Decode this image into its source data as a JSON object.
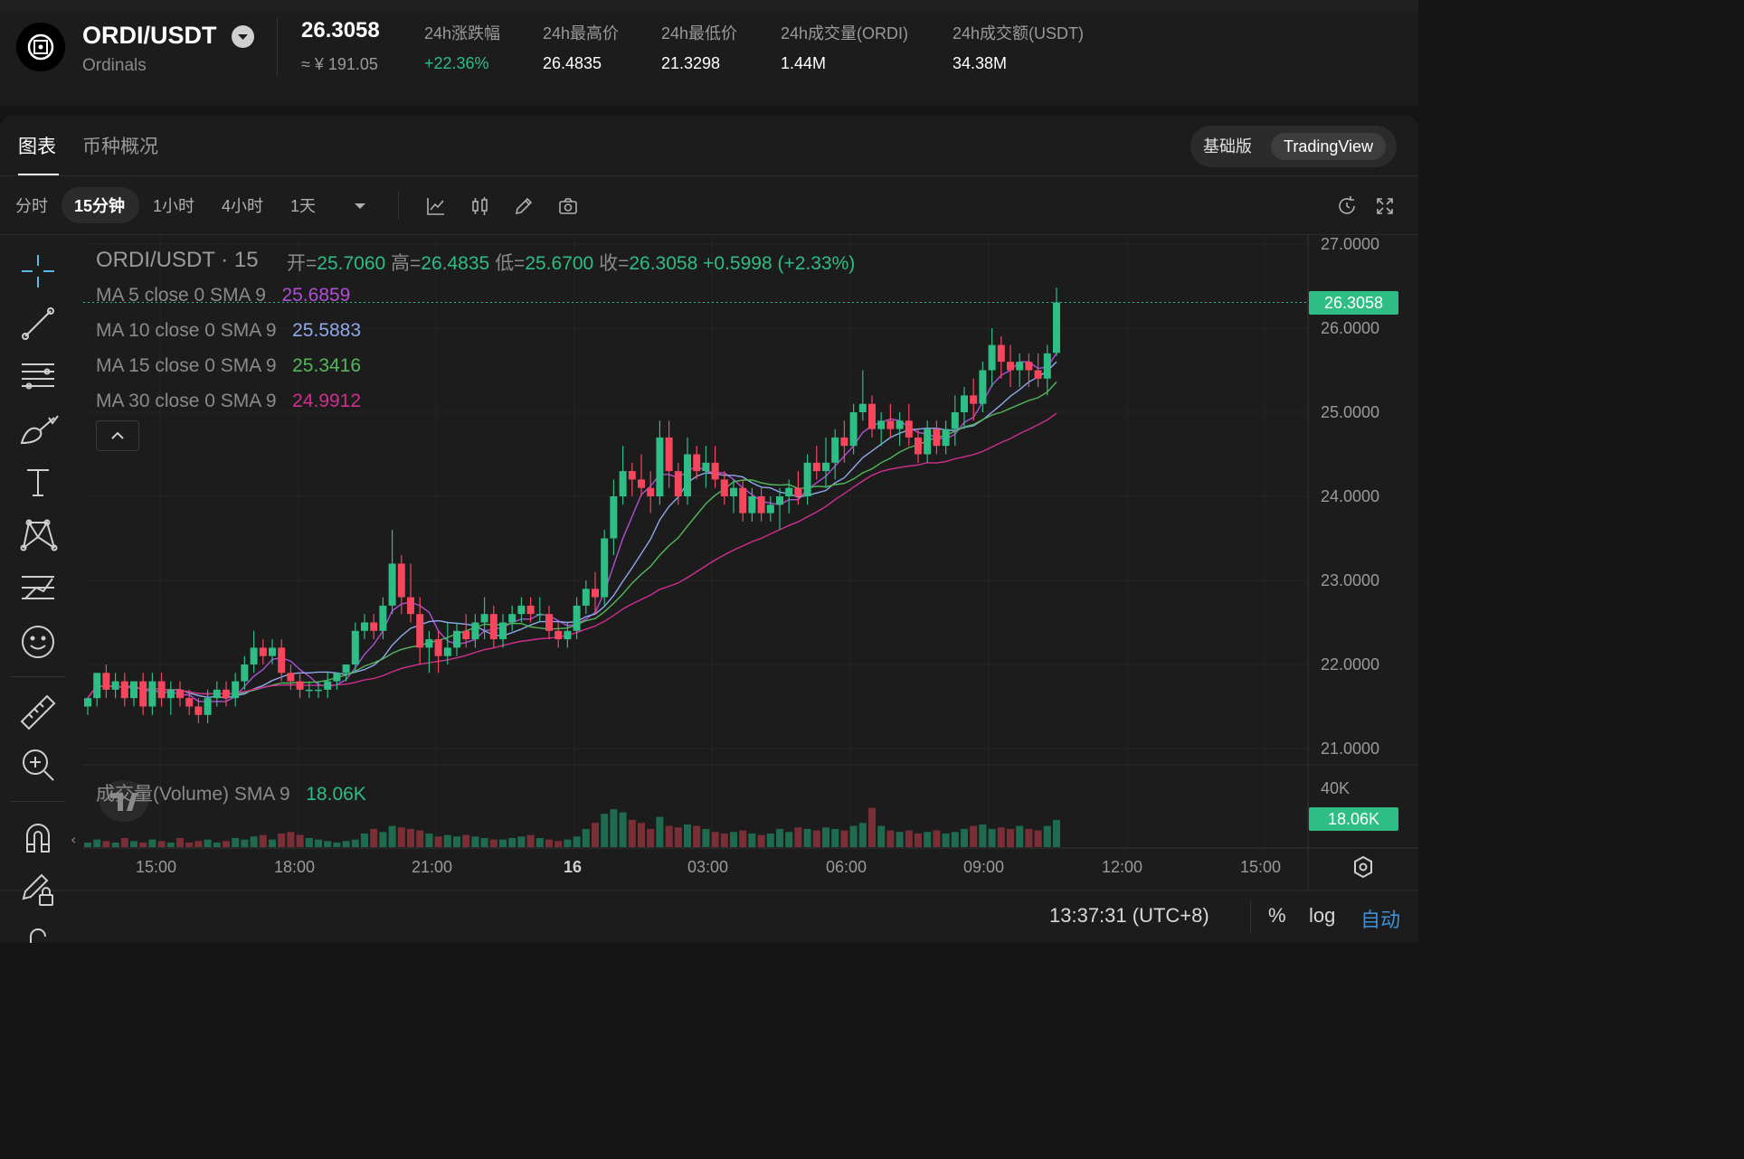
{
  "ticker": {
    "pair": "ORDI/USDT",
    "subtitle": "Ordinals",
    "last_price": "26.3058",
    "cny_price": "≈ ¥ 191.05",
    "stats": [
      {
        "label": "24h涨跌幅",
        "value": "+22.36%",
        "up": true
      },
      {
        "label": "24h最高价",
        "value": "26.4835"
      },
      {
        "label": "24h最低价",
        "value": "21.3298"
      },
      {
        "label": "24h成交量(ORDI)",
        "value": "1.44M"
      },
      {
        "label": "24h成交额(USDT)",
        "value": "34.38M"
      }
    ]
  },
  "tabs": {
    "chart": "图表",
    "overview": "币种概况"
  },
  "view_toggle": {
    "basic": "基础版",
    "tradingview": "TradingView"
  },
  "intervals": [
    "分时",
    "15分钟",
    "1小时",
    "4小时",
    "1天"
  ],
  "active_interval": "15分钟",
  "legend": {
    "title": "ORDI/USDT · 15",
    "ohlc": {
      "open_label": "开=",
      "open": "25.7060",
      "high_label": "高=",
      "high": "26.4835",
      "low_label": "低=",
      "low": "25.6700",
      "close_label": "收=",
      "close": "26.3058",
      "change": "+0.5998 (+2.33%)"
    },
    "ma": [
      {
        "label": "MA 5 close 0 SMA 9",
        "value": "25.6859",
        "color": "#b04fd6"
      },
      {
        "label": "MA 10 close 0 SMA 9",
        "value": "25.5883",
        "color": "#8fa8ea"
      },
      {
        "label": "MA 15 close 0 SMA 9",
        "value": "25.3416",
        "color": "#53b85b"
      },
      {
        "label": "MA 30 close 0 SMA 9",
        "value": "24.9912",
        "color": "#d02f8d"
      }
    ],
    "volume_label": "成交量(Volume) SMA 9",
    "volume_value": "18.06K"
  },
  "price_axis": [
    "27.0000",
    "26.0000",
    "25.0000",
    "24.0000",
    "23.0000",
    "22.0000",
    "21.0000"
  ],
  "last_price_tag": "26.3058",
  "volume_axis": "40K",
  "volume_tag": "18.06K",
  "time_axis": [
    "15:00",
    "18:00",
    "21:00",
    "16",
    "03:00",
    "06:00",
    "09:00",
    "12:00",
    "15:00"
  ],
  "status_time": "13:37:31 (UTC+8)",
  "bottom_options": {
    "percent": "%",
    "log": "log",
    "auto": "自动"
  },
  "colors": {
    "up": "#2ebd85",
    "down": "#f6465d",
    "background": "#1c1c1c"
  },
  "icons": [
    "crosshair-icon",
    "trend-line-icon",
    "fib-icon",
    "brush-icon",
    "text-icon",
    "pattern-icon",
    "prediction-icon",
    "emoji-icon",
    "ruler-icon",
    "zoom-in-icon",
    "magnet-icon",
    "lock-drawing-icon",
    "settings-icon"
  ],
  "chart_data": {
    "type": "candlestick",
    "symbol": "ORDI/USDT",
    "interval": "15",
    "ylim": [
      20.8,
      27.1
    ],
    "x_ticks": [
      "15:00",
      "18:00",
      "21:00",
      "16",
      "03:00",
      "06:00",
      "09:00",
      "12:00",
      "15:00"
    ],
    "candles": [
      [
        21.5,
        21.6,
        21.4,
        21.6
      ],
      [
        21.6,
        21.9,
        21.5,
        21.9
      ],
      [
        21.9,
        22.0,
        21.6,
        21.7
      ],
      [
        21.7,
        21.9,
        21.6,
        21.8
      ],
      [
        21.8,
        21.9,
        21.5,
        21.6
      ],
      [
        21.6,
        21.8,
        21.5,
        21.8
      ],
      [
        21.8,
        21.9,
        21.4,
        21.5
      ],
      [
        21.5,
        21.9,
        21.4,
        21.8
      ],
      [
        21.8,
        21.9,
        21.5,
        21.6
      ],
      [
        21.6,
        21.8,
        21.4,
        21.7
      ],
      [
        21.7,
        21.8,
        21.5,
        21.6
      ],
      [
        21.6,
        21.7,
        21.4,
        21.5
      ],
      [
        21.5,
        21.6,
        21.3,
        21.4
      ],
      [
        21.4,
        21.7,
        21.3,
        21.6
      ],
      [
        21.6,
        21.8,
        21.5,
        21.7
      ],
      [
        21.7,
        21.8,
        21.5,
        21.6
      ],
      [
        21.6,
        21.9,
        21.5,
        21.8
      ],
      [
        21.8,
        22.1,
        21.7,
        22.0
      ],
      [
        22.0,
        22.4,
        21.9,
        22.2
      ],
      [
        22.2,
        22.3,
        22.0,
        22.1
      ],
      [
        22.1,
        22.3,
        22.0,
        22.2
      ],
      [
        22.2,
        22.3,
        21.8,
        21.9
      ],
      [
        21.9,
        22.0,
        21.7,
        21.8
      ],
      [
        21.8,
        21.9,
        21.6,
        21.7
      ],
      [
        21.7,
        21.8,
        21.6,
        21.7
      ],
      [
        21.7,
        21.8,
        21.6,
        21.7
      ],
      [
        21.7,
        21.9,
        21.6,
        21.8
      ],
      [
        21.8,
        21.9,
        21.7,
        21.9
      ],
      [
        21.9,
        22.0,
        21.8,
        22.0
      ],
      [
        22.0,
        22.5,
        21.9,
        22.4
      ],
      [
        22.4,
        22.6,
        22.3,
        22.5
      ],
      [
        22.5,
        22.6,
        22.3,
        22.4
      ],
      [
        22.4,
        22.8,
        22.3,
        22.7
      ],
      [
        22.7,
        23.6,
        22.6,
        23.2
      ],
      [
        23.2,
        23.3,
        22.6,
        22.8
      ],
      [
        22.8,
        23.2,
        22.5,
        22.6
      ],
      [
        22.6,
        22.8,
        22.0,
        22.2
      ],
      [
        22.2,
        22.4,
        21.9,
        22.3
      ],
      [
        22.3,
        22.4,
        21.9,
        22.1
      ],
      [
        22.1,
        22.5,
        22.0,
        22.2
      ],
      [
        22.2,
        22.5,
        22.1,
        22.4
      ],
      [
        22.4,
        22.6,
        22.2,
        22.3
      ],
      [
        22.3,
        22.6,
        22.2,
        22.5
      ],
      [
        22.5,
        22.8,
        22.3,
        22.6
      ],
      [
        22.6,
        22.7,
        22.2,
        22.3
      ],
      [
        22.3,
        22.6,
        22.2,
        22.5
      ],
      [
        22.5,
        22.7,
        22.4,
        22.6
      ],
      [
        22.6,
        22.8,
        22.5,
        22.7
      ],
      [
        22.7,
        22.8,
        22.5,
        22.6
      ],
      [
        22.6,
        22.8,
        22.5,
        22.6
      ],
      [
        22.6,
        22.7,
        22.3,
        22.4
      ],
      [
        22.4,
        22.5,
        22.2,
        22.3
      ],
      [
        22.3,
        22.5,
        22.2,
        22.4
      ],
      [
        22.4,
        22.8,
        22.3,
        22.7
      ],
      [
        22.7,
        23.0,
        22.6,
        22.9
      ],
      [
        22.9,
        23.1,
        22.6,
        22.8
      ],
      [
        22.8,
        23.6,
        22.7,
        23.5
      ],
      [
        23.5,
        24.2,
        23.3,
        24.0
      ],
      [
        24.0,
        24.6,
        23.9,
        24.3
      ],
      [
        24.3,
        24.4,
        24.0,
        24.2
      ],
      [
        24.2,
        24.5,
        24.0,
        24.1
      ],
      [
        24.1,
        24.3,
        23.8,
        24.0
      ],
      [
        24.0,
        24.9,
        23.9,
        24.7
      ],
      [
        24.7,
        24.9,
        24.1,
        24.3
      ],
      [
        24.3,
        24.4,
        23.9,
        24.0
      ],
      [
        24.0,
        24.7,
        23.9,
        24.5
      ],
      [
        24.5,
        24.6,
        24.2,
        24.3
      ],
      [
        24.3,
        24.6,
        24.1,
        24.4
      ],
      [
        24.4,
        24.6,
        24.1,
        24.2
      ],
      [
        24.2,
        24.3,
        23.9,
        24.0
      ],
      [
        24.0,
        24.2,
        23.8,
        24.1
      ],
      [
        24.1,
        24.2,
        23.7,
        23.8
      ],
      [
        23.8,
        24.1,
        23.7,
        24.0
      ],
      [
        24.0,
        24.1,
        23.7,
        23.8
      ],
      [
        23.8,
        24.0,
        23.7,
        23.9
      ],
      [
        23.9,
        24.1,
        23.6,
        24.0
      ],
      [
        24.0,
        24.2,
        23.8,
        24.1
      ],
      [
        24.1,
        24.3,
        23.9,
        24.0
      ],
      [
        24.0,
        24.5,
        23.9,
        24.4
      ],
      [
        24.4,
        24.6,
        24.2,
        24.3
      ],
      [
        24.3,
        24.7,
        24.1,
        24.4
      ],
      [
        24.4,
        24.8,
        24.2,
        24.7
      ],
      [
        24.7,
        24.9,
        24.4,
        24.6
      ],
      [
        24.6,
        25.1,
        24.5,
        25.0
      ],
      [
        25.0,
        25.5,
        24.9,
        25.1
      ],
      [
        25.1,
        25.2,
        24.7,
        24.8
      ],
      [
        24.8,
        25.0,
        24.6,
        24.9
      ],
      [
        24.9,
        25.1,
        24.7,
        24.8
      ],
      [
        24.8,
        25.0,
        24.6,
        24.9
      ],
      [
        24.9,
        25.1,
        24.6,
        24.7
      ],
      [
        24.7,
        24.8,
        24.4,
        24.5
      ],
      [
        24.5,
        24.9,
        24.4,
        24.8
      ],
      [
        24.8,
        24.9,
        24.5,
        24.6
      ],
      [
        24.6,
        24.9,
        24.5,
        24.8
      ],
      [
        24.8,
        25.2,
        24.6,
        25.0
      ],
      [
        25.0,
        25.3,
        24.8,
        25.2
      ],
      [
        25.2,
        25.4,
        24.9,
        25.1
      ],
      [
        25.1,
        25.6,
        25.0,
        25.5
      ],
      [
        25.5,
        26.0,
        25.3,
        25.8
      ],
      [
        25.8,
        25.9,
        25.4,
        25.6
      ],
      [
        25.6,
        25.8,
        25.3,
        25.5
      ],
      [
        25.5,
        25.7,
        25.3,
        25.6
      ],
      [
        25.6,
        25.7,
        25.3,
        25.5
      ],
      [
        25.5,
        25.7,
        25.3,
        25.4
      ],
      [
        25.4,
        25.8,
        25.2,
        25.7
      ],
      [
        25.706,
        26.4835,
        25.67,
        26.3058
      ]
    ],
    "volume": [
      3,
      5,
      4,
      3,
      6,
      4,
      3,
      5,
      4,
      3,
      6,
      3,
      4,
      5,
      3,
      4,
      6,
      5,
      7,
      8,
      5,
      9,
      10,
      8,
      6,
      5,
      4,
      3,
      4,
      5,
      9,
      12,
      10,
      14,
      13,
      12,
      11,
      9,
      7,
      8,
      7,
      8,
      7,
      6,
      5,
      5,
      6,
      7,
      8,
      6,
      5,
      4,
      5,
      7,
      12,
      16,
      22,
      25,
      23,
      18,
      16,
      12,
      20,
      14,
      13,
      15,
      14,
      12,
      10,
      9,
      10,
      11,
      9,
      8,
      9,
      12,
      10,
      13,
      12,
      11,
      13,
      12,
      11,
      14,
      16,
      26,
      14,
      11,
      10,
      11,
      9,
      10,
      11,
      9,
      10,
      12,
      14,
      15,
      12,
      13,
      12,
      14,
      12,
      11,
      14,
      18
    ],
    "volume_ylim": [
      0,
      52
    ]
  }
}
